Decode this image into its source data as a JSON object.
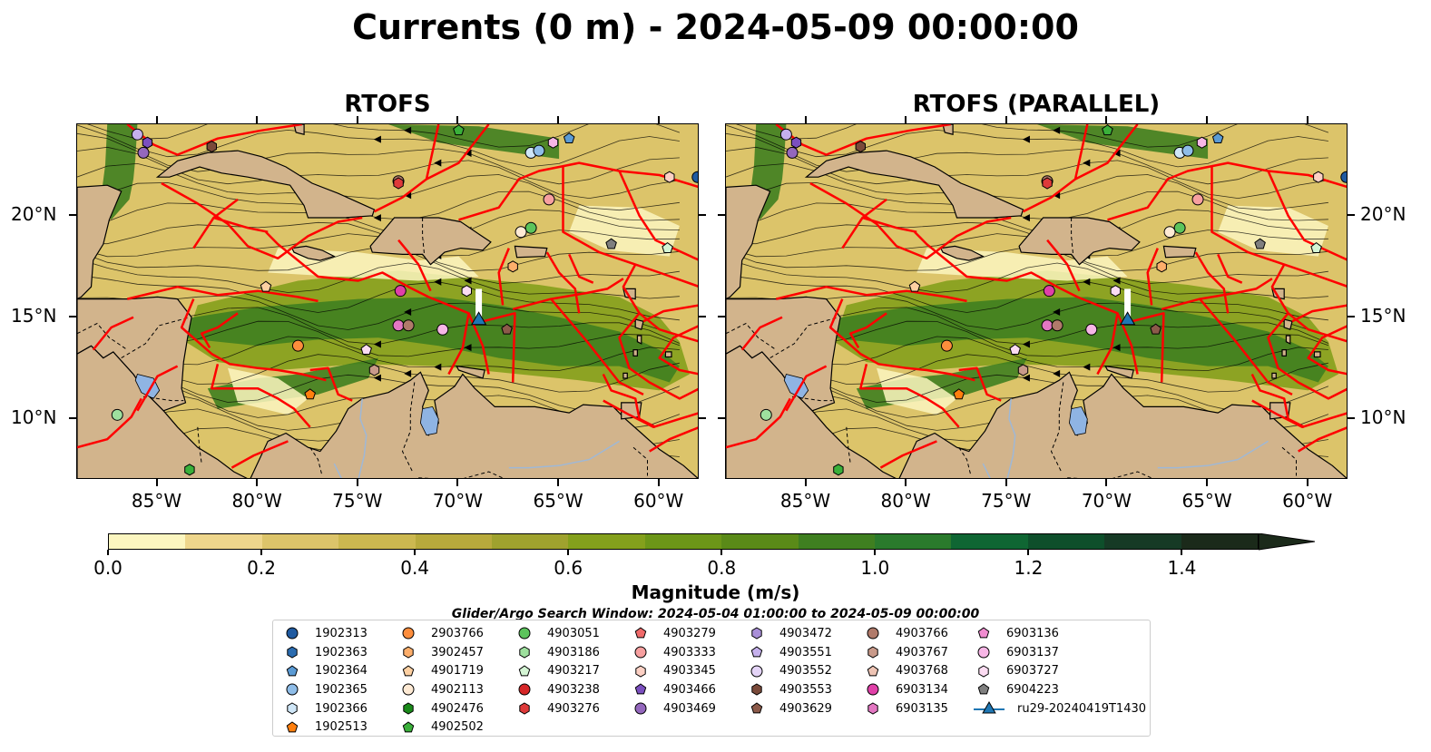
{
  "title": "Currents (0 m) - 2024-05-09 00:00:00",
  "panels": [
    {
      "title": "RTOFS"
    },
    {
      "title": "RTOFS (PARALLEL)"
    }
  ],
  "map": {
    "lon_range": [
      -89,
      -58
    ],
    "lat_range": [
      7,
      24.5
    ],
    "lon_ticks": [
      "85°W",
      "80°W",
      "75°W",
      "70°W",
      "65°W",
      "60°W"
    ],
    "lat_ticks": [
      "20°N",
      "15°N",
      "10°N"
    ],
    "land_color": "#d2b48c",
    "eez_color": "#ff0000",
    "glider_track_color": "#ffffff"
  },
  "colorbar": {
    "label": "Magnitude (m/s)",
    "ticks": [
      "0.0",
      "0.2",
      "0.4",
      "0.6",
      "0.8",
      "1.0",
      "1.2",
      "1.4"
    ],
    "range": [
      0,
      1.5
    ],
    "extend": "max",
    "colors": [
      "#fcf6c0",
      "#eed68c",
      "#dcc46a",
      "#ccb850",
      "#b8aa3c",
      "#9fa22e",
      "#84a01c",
      "#6c9618",
      "#5a8a18",
      "#3f7f20",
      "#2a7a2c",
      "#0f6633",
      "#0e4f2b",
      "#163a25",
      "#1b2a1a"
    ]
  },
  "search_window": "Glider/Argo Search Window: 2024-05-04 01:00:00 to 2024-05-09 00:00:00",
  "legend": {
    "columns": [
      [
        {
          "label": "1902313",
          "shape": "circle",
          "color": "#1f5aa0"
        },
        {
          "label": "1902363",
          "shape": "hexagon",
          "color": "#2b6cb0"
        },
        {
          "label": "1902364",
          "shape": "pentagon",
          "color": "#5b9bd5"
        },
        {
          "label": "1902365",
          "shape": "circle",
          "color": "#8fbde8"
        },
        {
          "label": "1902366",
          "shape": "hexagon",
          "color": "#cfe6f7"
        },
        {
          "label": "1902513",
          "shape": "pentagon",
          "color": "#ff7f0e"
        }
      ],
      [
        {
          "label": "2903766",
          "shape": "circle",
          "color": "#fd8d3c"
        },
        {
          "label": "3902457",
          "shape": "hexagon",
          "color": "#fdae6b"
        },
        {
          "label": "4901719",
          "shape": "pentagon",
          "color": "#fdd0a2"
        },
        {
          "label": "4902113",
          "shape": "circle",
          "color": "#feead4"
        },
        {
          "label": "4902476",
          "shape": "hexagon",
          "color": "#1a8a1a"
        },
        {
          "label": "4902502",
          "shape": "pentagon",
          "color": "#3ab03a"
        }
      ],
      [
        {
          "label": "4903051",
          "shape": "circle",
          "color": "#5cc45c"
        },
        {
          "label": "4903186",
          "shape": "hexagon",
          "color": "#9ee09e"
        },
        {
          "label": "4903217",
          "shape": "pentagon",
          "color": "#d4f5d4"
        },
        {
          "label": "4903238",
          "shape": "circle",
          "color": "#d62728"
        },
        {
          "label": "4903276",
          "shape": "hexagon",
          "color": "#de3a3a"
        }
      ],
      [
        {
          "label": "4903279",
          "shape": "pentagon",
          "color": "#f06a6a"
        },
        {
          "label": "4903333",
          "shape": "circle",
          "color": "#f7a0a0"
        },
        {
          "label": "4903345",
          "shape": "hexagon",
          "color": "#fcd0c4"
        },
        {
          "label": "4903466",
          "shape": "pentagon",
          "color": "#7b4fbf"
        },
        {
          "label": "4903469",
          "shape": "circle",
          "color": "#9467bd"
        }
      ],
      [
        {
          "label": "4903472",
          "shape": "hexagon",
          "color": "#a98fd8"
        },
        {
          "label": "4903551",
          "shape": "pentagon",
          "color": "#c5b0ec"
        },
        {
          "label": "4903552",
          "shape": "circle",
          "color": "#e4d4f7"
        },
        {
          "label": "4903553",
          "shape": "hexagon",
          "color": "#7a4a3a"
        },
        {
          "label": "4903629",
          "shape": "pentagon",
          "color": "#8c5a4a"
        }
      ],
      [
        {
          "label": "4903766",
          "shape": "circle",
          "color": "#b07a6a"
        },
        {
          "label": "4903767",
          "shape": "hexagon",
          "color": "#c99a8a"
        },
        {
          "label": "4903768",
          "shape": "pentagon",
          "color": "#eec4b4"
        },
        {
          "label": "6903134",
          "shape": "circle",
          "color": "#e040a8"
        },
        {
          "label": "6903135",
          "shape": "hexagon",
          "color": "#e377c2"
        }
      ],
      [
        {
          "label": "6903136",
          "shape": "pentagon",
          "color": "#f08cd0"
        },
        {
          "label": "6903137",
          "shape": "circle",
          "color": "#f7b6e6"
        },
        {
          "label": "6903727",
          "shape": "hexagon",
          "color": "#fcdcf2"
        },
        {
          "label": "6904223",
          "shape": "pentagon",
          "color": "#7f7f7f"
        },
        {
          "label": "ru29-20240419T1430",
          "shape": "glider",
          "color": "#1f77b4"
        }
      ]
    ]
  },
  "markers": [
    {
      "lon": -86.0,
      "lat": 24.0,
      "shape": "circle",
      "color": "#c5b0ec"
    },
    {
      "lon": -85.5,
      "lat": 23.6,
      "shape": "hexagon",
      "color": "#7b4fbf"
    },
    {
      "lon": -85.7,
      "lat": 23.1,
      "shape": "circle",
      "color": "#9467bd"
    },
    {
      "lon": -82.3,
      "lat": 23.4,
      "shape": "hexagon",
      "color": "#7a4a3a"
    },
    {
      "lon": -70.0,
      "lat": 24.2,
      "shape": "pentagon",
      "color": "#3ab03a"
    },
    {
      "lon": -66.4,
      "lat": 23.1,
      "shape": "circle",
      "color": "#cfe6f7"
    },
    {
      "lon": -66.0,
      "lat": 23.2,
      "shape": "circle",
      "color": "#8fbde8"
    },
    {
      "lon": -65.3,
      "lat": 23.6,
      "shape": "hexagon",
      "color": "#f7b6e6"
    },
    {
      "lon": -64.5,
      "lat": 23.8,
      "shape": "pentagon",
      "color": "#5b9bd5"
    },
    {
      "lon": -58.1,
      "lat": 21.9,
      "shape": "circle",
      "color": "#1f5aa0"
    },
    {
      "lon": -59.5,
      "lat": 21.9,
      "shape": "hexagon",
      "color": "#fcd0c4"
    },
    {
      "lon": -73.0,
      "lat": 21.7,
      "shape": "circle",
      "color": "#b07a6a"
    },
    {
      "lon": -73.0,
      "lat": 21.6,
      "shape": "hexagon",
      "color": "#de3a3a"
    },
    {
      "lon": -65.5,
      "lat": 20.8,
      "shape": "circle",
      "color": "#f7a0a0"
    },
    {
      "lon": -66.4,
      "lat": 19.4,
      "shape": "circle",
      "color": "#5cc45c"
    },
    {
      "lon": -66.9,
      "lat": 19.2,
      "shape": "circle",
      "color": "#feead4"
    },
    {
      "lon": -62.4,
      "lat": 18.6,
      "shape": "pentagon",
      "color": "#7f7f7f"
    },
    {
      "lon": -59.6,
      "lat": 18.4,
      "shape": "pentagon",
      "color": "#d4f5d4"
    },
    {
      "lon": -67.3,
      "lat": 17.5,
      "shape": "hexagon",
      "color": "#fdae6b"
    },
    {
      "lon": -79.6,
      "lat": 16.5,
      "shape": "pentagon",
      "color": "#fdd0a2"
    },
    {
      "lon": -72.9,
      "lat": 16.3,
      "shape": "circle",
      "color": "#e040a8"
    },
    {
      "lon": -69.6,
      "lat": 16.3,
      "shape": "hexagon",
      "color": "#fcdcf2"
    },
    {
      "lon": -73.0,
      "lat": 14.6,
      "shape": "circle",
      "color": "#e377c2"
    },
    {
      "lon": -72.5,
      "lat": 14.6,
      "shape": "circle",
      "color": "#b07a6a"
    },
    {
      "lon": -70.8,
      "lat": 14.4,
      "shape": "circle",
      "color": "#f7b6e6"
    },
    {
      "lon": -67.6,
      "lat": 14.4,
      "shape": "pentagon",
      "color": "#8c5a4a"
    },
    {
      "lon": -78.0,
      "lat": 13.6,
      "shape": "circle",
      "color": "#fd8d3c"
    },
    {
      "lon": -74.6,
      "lat": 13.4,
      "shape": "pentagon",
      "color": "#fcdcf2"
    },
    {
      "lon": -74.2,
      "lat": 12.4,
      "shape": "hexagon",
      "color": "#c99a8a"
    },
    {
      "lon": -77.4,
      "lat": 11.2,
      "shape": "pentagon",
      "color": "#ff7f0e"
    },
    {
      "lon": -87.0,
      "lat": 10.2,
      "shape": "circle",
      "color": "#9ee09e"
    },
    {
      "lon": -83.4,
      "lat": 7.5,
      "shape": "hexagon",
      "color": "#3ab03a"
    }
  ],
  "glider": {
    "lon": -69.0,
    "lat": 14.8,
    "track_top_lat": 16.4,
    "color": "#1f77b4"
  }
}
